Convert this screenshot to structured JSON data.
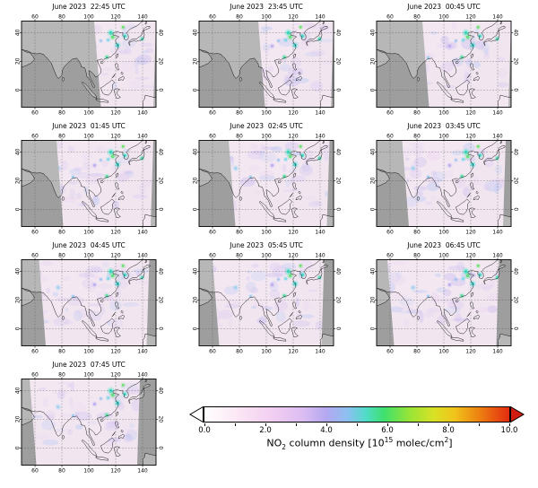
{
  "figure": {
    "panels": [
      {
        "title": "June 2023  22:45 UTC",
        "swath": [
          104,
          150
        ]
      },
      {
        "title": "June 2023  23:45 UTC",
        "swath": [
          94,
          150
        ]
      },
      {
        "title": "June 2023  00:45 UTC",
        "swath": [
          84,
          150
        ]
      },
      {
        "title": "June 2023  01:45 UTC",
        "swath": [
          76,
          148
        ]
      },
      {
        "title": "June 2023  02:45 UTC",
        "swath": [
          72,
          147
        ]
      },
      {
        "title": "June 2023  03:45 UTC",
        "swath": [
          69,
          146
        ]
      },
      {
        "title": "June 2023  04:45 UTC",
        "swath": [
          63,
          145
        ]
      },
      {
        "title": "June 2023  05:45 UTC",
        "swath": [
          60,
          143
        ]
      },
      {
        "title": "June 2023  06:45 UTC",
        "swath": [
          58,
          141
        ]
      },
      {
        "title": "June 2023  07:45 UTC",
        "swath": [
          56,
          138
        ]
      }
    ],
    "axis": {
      "lon_ticks": [
        60,
        80,
        100,
        120,
        140
      ],
      "lat_ticks": [
        0,
        20,
        40
      ]
    },
    "colorbar": {
      "ticks": [
        "0.0",
        "2.0",
        "4.0",
        "6.0",
        "8.0",
        "10.0"
      ],
      "label": {
        "pre": "NO",
        "sub": "2",
        "mid": " column density [10",
        "sup": "15",
        "post": " molec/cm",
        "sup2": "2",
        "end": "]"
      }
    },
    "colors": {
      "ocean": "#9e9e9e",
      "land": "#b7b7b7",
      "swath": "#f8ecf6",
      "coast": "#000000",
      "arrow_left": "#ffffff",
      "arrow_right": "#d21c10"
    }
  }
}
